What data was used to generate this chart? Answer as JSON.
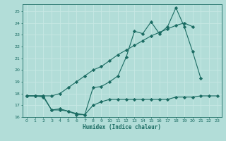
{
  "title": "",
  "xlabel": "Humidex (Indice chaleur)",
  "background_color": "#b2ddd8",
  "line_color": "#1a6b62",
  "grid_color": "#c8e8e4",
  "x_values": [
    0,
    1,
    2,
    3,
    4,
    5,
    6,
    7,
    8,
    9,
    10,
    11,
    12,
    13,
    14,
    15,
    16,
    17,
    18,
    19,
    20,
    21,
    22,
    23
  ],
  "line1_y": [
    17.8,
    17.8,
    17.7,
    16.6,
    16.6,
    16.5,
    16.2,
    16.2,
    17.0,
    17.3,
    17.5,
    17.5,
    17.5,
    17.5,
    17.5,
    17.5,
    17.5,
    17.5,
    17.7,
    17.7,
    17.7,
    17.8,
    17.8,
    17.8
  ],
  "line2_y": [
    17.8,
    17.8,
    17.8,
    16.6,
    16.7,
    16.5,
    16.3,
    16.2,
    18.5,
    18.6,
    19.0,
    19.5,
    21.1,
    23.3,
    23.1,
    24.1,
    23.1,
    23.7,
    25.3,
    23.7,
    21.6,
    19.3,
    null,
    null
  ],
  "line3_y": [
    17.8,
    17.8,
    17.8,
    17.8,
    18.0,
    18.5,
    19.0,
    19.5,
    20.0,
    20.3,
    20.8,
    21.3,
    21.7,
    22.1,
    22.5,
    22.9,
    23.2,
    23.5,
    23.8,
    24.0,
    23.7,
    null,
    null,
    null
  ],
  "ylim": [
    16.0,
    25.6
  ],
  "xlim": [
    -0.5,
    23.5
  ],
  "yticks": [
    16,
    17,
    18,
    19,
    20,
    21,
    22,
    23,
    24,
    25
  ],
  "xticks": [
    0,
    1,
    2,
    3,
    4,
    5,
    6,
    7,
    8,
    9,
    10,
    11,
    12,
    13,
    14,
    15,
    16,
    17,
    18,
    19,
    20,
    21,
    22,
    23
  ],
  "marker": "D",
  "linewidth": 0.8,
  "markersize": 2.2
}
